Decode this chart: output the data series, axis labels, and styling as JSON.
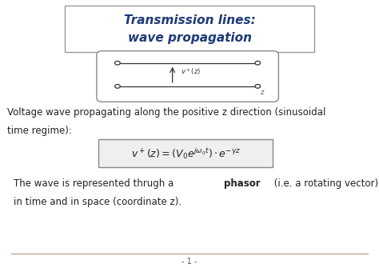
{
  "title_line1": "Transmission lines:",
  "title_line2": "wave propagation",
  "title_color": "#1E3A78",
  "title_box_edge": "#999999",
  "title_fontsize": 11,
  "body_fontsize": 8.5,
  "formula_fontsize": 9,
  "diagram_label": "v⁺(z)",
  "z_label": "z",
  "body_text1a": "Voltage wave propagating along the positive z direction (sinusoidal",
  "body_text1b": "time regime):",
  "para2_pre": "The wave is represented thrugh a ",
  "para2_bold": "phasor",
  "para2_post": " (i.e. a rotating vector) both",
  "para2_line2": "in time and in space (coordinate z).",
  "page_number": "- 1 -",
  "bg_color": "#FFFFFF",
  "text_color": "#222222",
  "line_color": "#C09090"
}
